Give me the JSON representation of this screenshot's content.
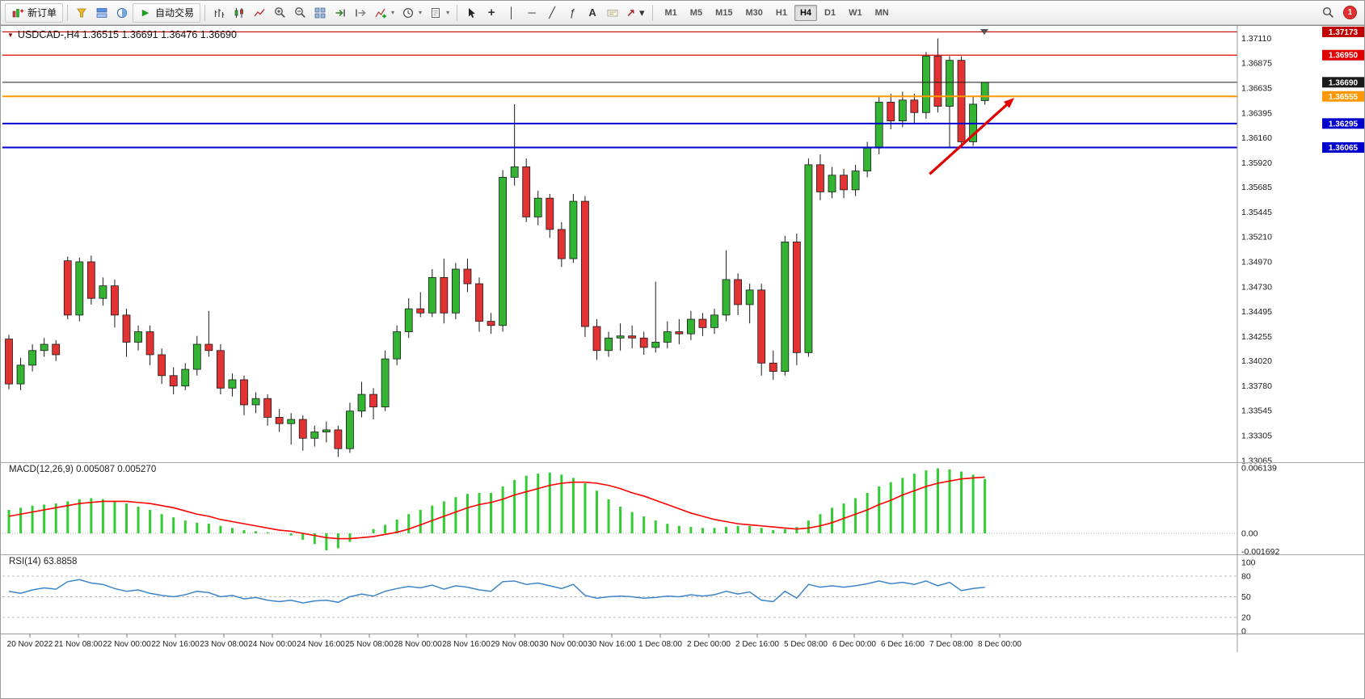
{
  "toolbar": {
    "new_order_label": "新订单",
    "autotrading_label": "自动交易",
    "timeframes": [
      "M1",
      "M5",
      "M15",
      "M30",
      "H1",
      "H4",
      "D1",
      "W1",
      "MN"
    ],
    "active_timeframe": "H4",
    "notification_count": "1"
  },
  "icons": {
    "dropdown": "▾",
    "autotrading_play": "▶",
    "crosshair": "+",
    "vertical_line": "│",
    "horizontal_line": "─",
    "trendline": "╱",
    "fibonacci": "ƒ",
    "text_tool": "A",
    "arrows_tool": "↗",
    "symbol_marker": "▼"
  },
  "chart_data": [
    {
      "type": "candlestick",
      "symbol": "USDCAD-",
      "timeframe": "H4",
      "title": "USDCAD-,H4 1.36515 1.36691 1.36476 1.36690",
      "ohlc": {
        "open": "1.36515",
        "high": "1.36691",
        "low": "1.36476",
        "close": "1.36690"
      },
      "ylim": [
        1.3305,
        1.37215
      ],
      "y_ticks": [
        "1.37110",
        "1.36875",
        "1.36635",
        "1.36395",
        "1.36160",
        "1.35920",
        "1.35685",
        "1.35445",
        "1.35210",
        "1.34970",
        "1.34730",
        "1.34495",
        "1.34255",
        "1.34020",
        "1.33780",
        "1.33545",
        "1.33305",
        "1.33065"
      ],
      "x_labels": [
        "20 Nov 2022",
        "21 Nov 08:00",
        "22 Nov 00:00",
        "22 Nov 16:00",
        "23 Nov 08:00",
        "24 Nov 00:00",
        "24 Nov 16:00",
        "25 Nov 08:00",
        "28 Nov 00:00",
        "28 Nov 16:00",
        "29 Nov 08:00",
        "30 Nov 00:00",
        "30 Nov 16:00",
        "1 Dec 08:00",
        "2 Dec 00:00",
        "2 Dec 16:00",
        "5 Dec 08:00",
        "6 Dec 00:00",
        "6 Dec 16:00",
        "7 Dec 08:00",
        "8 Dec 00:00"
      ],
      "colors": {
        "bull": "#33b533",
        "bear": "#e23232",
        "wick": "#1a1a1a",
        "background": "#ffffff"
      },
      "candles": [
        [
          1.3423,
          1.3427,
          1.3375,
          1.338
        ],
        [
          1.338,
          1.3405,
          1.3374,
          1.3398
        ],
        [
          1.3398,
          1.3418,
          1.3392,
          1.3412
        ],
        [
          1.3412,
          1.3424,
          1.3406,
          1.3418
        ],
        [
          1.3418,
          1.3422,
          1.3402,
          1.3408
        ],
        [
          1.3498,
          1.3502,
          1.3442,
          1.3446
        ],
        [
          1.3446,
          1.3501,
          1.344,
          1.3497
        ],
        [
          1.3497,
          1.3503,
          1.3456,
          1.3462
        ],
        [
          1.3462,
          1.3482,
          1.3455,
          1.3474
        ],
        [
          1.3474,
          1.348,
          1.3434,
          1.3446
        ],
        [
          1.3446,
          1.3452,
          1.3406,
          1.342
        ],
        [
          1.342,
          1.3436,
          1.3412,
          1.343
        ],
        [
          1.343,
          1.3436,
          1.3398,
          1.3408
        ],
        [
          1.3408,
          1.3414,
          1.338,
          1.3388
        ],
        [
          1.3388,
          1.3396,
          1.337,
          1.3378
        ],
        [
          1.3378,
          1.34,
          1.3374,
          1.3394
        ],
        [
          1.3394,
          1.3426,
          1.3388,
          1.3418
        ],
        [
          1.3418,
          1.345,
          1.3406,
          1.3412
        ],
        [
          1.3412,
          1.3418,
          1.337,
          1.3376
        ],
        [
          1.3376,
          1.339,
          1.3368,
          1.3384
        ],
        [
          1.3384,
          1.3388,
          1.335,
          1.336
        ],
        [
          1.336,
          1.3372,
          1.3352,
          1.3366
        ],
        [
          1.3366,
          1.337,
          1.334,
          1.3348
        ],
        [
          1.3348,
          1.3356,
          1.3334,
          1.3342
        ],
        [
          1.3342,
          1.3352,
          1.3322,
          1.3346
        ],
        [
          1.3346,
          1.335,
          1.3316,
          1.3328
        ],
        [
          1.3328,
          1.334,
          1.332,
          1.3334
        ],
        [
          1.3334,
          1.3344,
          1.3324,
          1.3336
        ],
        [
          1.3336,
          1.334,
          1.331,
          1.3318
        ],
        [
          1.3318,
          1.3362,
          1.3314,
          1.3354
        ],
        [
          1.3354,
          1.3382,
          1.3348,
          1.337
        ],
        [
          1.337,
          1.3376,
          1.3346,
          1.3358
        ],
        [
          1.3358,
          1.3412,
          1.3354,
          1.3404
        ],
        [
          1.3404,
          1.3436,
          1.3398,
          1.343
        ],
        [
          1.343,
          1.3462,
          1.3424,
          1.3452
        ],
        [
          1.3452,
          1.3468,
          1.3444,
          1.3448
        ],
        [
          1.3448,
          1.349,
          1.3444,
          1.3482
        ],
        [
          1.3482,
          1.35,
          1.3438,
          1.3448
        ],
        [
          1.3448,
          1.3496,
          1.3442,
          1.349
        ],
        [
          1.349,
          1.35,
          1.3468,
          1.3476
        ],
        [
          1.3476,
          1.3482,
          1.343,
          1.344
        ],
        [
          1.344,
          1.3448,
          1.3428,
          1.3436
        ],
        [
          1.3436,
          1.3585,
          1.343,
          1.3578
        ],
        [
          1.3578,
          1.3648,
          1.357,
          1.3588
        ],
        [
          1.3588,
          1.3596,
          1.3535,
          1.354
        ],
        [
          1.354,
          1.3565,
          1.3532,
          1.3558
        ],
        [
          1.3558,
          1.3562,
          1.352,
          1.3528
        ],
        [
          1.3528,
          1.3535,
          1.3492,
          1.35
        ],
        [
          1.35,
          1.3562,
          1.3496,
          1.3555
        ],
        [
          1.3555,
          1.356,
          1.3425,
          1.3435
        ],
        [
          1.3435,
          1.3442,
          1.3403,
          1.3412
        ],
        [
          1.3412,
          1.343,
          1.3406,
          1.3424
        ],
        [
          1.3424,
          1.3438,
          1.3412,
          1.3426
        ],
        [
          1.3426,
          1.3436,
          1.3414,
          1.3424
        ],
        [
          1.3424,
          1.343,
          1.3408,
          1.3415
        ],
        [
          1.3415,
          1.3478,
          1.341,
          1.342
        ],
        [
          1.342,
          1.344,
          1.3414,
          1.343
        ],
        [
          1.343,
          1.3442,
          1.3418,
          1.3428
        ],
        [
          1.3428,
          1.345,
          1.3422,
          1.3442
        ],
        [
          1.3442,
          1.3448,
          1.3426,
          1.3434
        ],
        [
          1.3434,
          1.3452,
          1.3428,
          1.3446
        ],
        [
          1.3446,
          1.3508,
          1.344,
          1.348
        ],
        [
          1.348,
          1.3486,
          1.3446,
          1.3456
        ],
        [
          1.3456,
          1.3476,
          1.3438,
          1.347
        ],
        [
          1.347,
          1.3476,
          1.3388,
          1.34
        ],
        [
          1.34,
          1.3412,
          1.3384,
          1.3392
        ],
        [
          1.3392,
          1.3522,
          1.3388,
          1.3516
        ],
        [
          1.3516,
          1.3524,
          1.3398,
          1.341
        ],
        [
          1.341,
          1.3596,
          1.3406,
          1.359
        ],
        [
          1.359,
          1.36,
          1.3556,
          1.3564
        ],
        [
          1.3564,
          1.3588,
          1.3558,
          1.358
        ],
        [
          1.358,
          1.3586,
          1.3558,
          1.3566
        ],
        [
          1.3566,
          1.359,
          1.356,
          1.3584
        ],
        [
          1.3584,
          1.3612,
          1.3578,
          1.3606
        ],
        [
          1.3606,
          1.3656,
          1.36,
          1.365
        ],
        [
          1.365,
          1.3658,
          1.3624,
          1.3632
        ],
        [
          1.3632,
          1.366,
          1.3626,
          1.3652
        ],
        [
          1.3652,
          1.3658,
          1.363,
          1.364
        ],
        [
          1.364,
          1.3698,
          1.3634,
          1.3694
        ],
        [
          1.3694,
          1.3711,
          1.364,
          1.3646
        ],
        [
          1.3646,
          1.3694,
          1.3606,
          1.369
        ],
        [
          1.369,
          1.3694,
          1.3607,
          1.3612
        ],
        [
          1.3612,
          1.3656,
          1.3608,
          1.3648
        ],
        [
          1.36515,
          1.36691,
          1.36476,
          1.3669
        ]
      ],
      "hlines": [
        {
          "price": 1.37173,
          "label": "1.37173",
          "color": "#c00000",
          "width": 1.2
        },
        {
          "price": 1.3695,
          "label": "1.36950",
          "color": "#e00000",
          "width": 1.2
        },
        {
          "price": 1.3669,
          "label": "1.36690",
          "color": "#1a1a1a",
          "width": 1
        },
        {
          "price": 1.36555,
          "label": "1.36555",
          "color": "#ff9800",
          "width": 2
        },
        {
          "price": 1.36295,
          "label": "1.36295",
          "color": "#0000cc",
          "width": 2
        },
        {
          "price": 1.36065,
          "label": "1.36065",
          "color": "#0000cc",
          "width": 2
        }
      ],
      "arrow": {
        "from_candle": 78.3,
        "from_price": 1.3581,
        "to_candle": 85.3,
        "to_price": 1.3652,
        "color": "#e00000"
      }
    },
    {
      "type": "bar",
      "name": "MACD(12,26,9)",
      "label": "MACD(12,26,9) 0.005087 0.005270",
      "current_values": [
        "0.005087",
        "0.005270"
      ],
      "y_ticks": [
        "0.006139",
        "0.00",
        "-0.001692"
      ],
      "colors": {
        "histogram": "#33cc33",
        "signal": "#ff0000"
      },
      "values": [
        0.0022,
        0.0024,
        0.0026,
        0.0027,
        0.0028,
        0.003,
        0.0032,
        0.0033,
        0.0032,
        0.003,
        0.0028,
        0.0025,
        0.0022,
        0.0018,
        0.0015,
        0.0012,
        0.001,
        0.0009,
        0.0007,
        0.0005,
        0.0003,
        0.0002,
        0.0001,
        0.0,
        -0.0002,
        -0.0006,
        -0.001,
        -0.0016,
        -0.0014,
        -0.0008,
        0.0,
        0.0004,
        0.0008,
        0.0013,
        0.0018,
        0.0022,
        0.0026,
        0.003,
        0.0034,
        0.0037,
        0.0038,
        0.0038,
        0.0044,
        0.005,
        0.0054,
        0.0056,
        0.0057,
        0.0055,
        0.0052,
        0.0047,
        0.004,
        0.0032,
        0.0025,
        0.002,
        0.0016,
        0.0012,
        0.0009,
        0.0007,
        0.0006,
        0.0005,
        0.0005,
        0.0006,
        0.0007,
        0.0007,
        0.0005,
        0.0003,
        0.0004,
        0.0006,
        0.0012,
        0.0018,
        0.0024,
        0.0028,
        0.0033,
        0.0038,
        0.0044,
        0.0048,
        0.0052,
        0.0056,
        0.0059,
        0.0061,
        0.006,
        0.0058,
        0.0055,
        0.005087
      ],
      "signal": [
        0.0016,
        0.0018,
        0.002,
        0.0022,
        0.0024,
        0.0026,
        0.0028,
        0.0029,
        0.003,
        0.003,
        0.003,
        0.0029,
        0.0028,
        0.0026,
        0.0024,
        0.0021,
        0.0018,
        0.0016,
        0.0013,
        0.0011,
        0.0009,
        0.0007,
        0.0005,
        0.0003,
        0.0002,
        0.0,
        -0.0002,
        -0.0004,
        -0.0005,
        -0.0005,
        -0.0004,
        -0.0003,
        -0.0001,
        0.0001,
        0.0004,
        0.0008,
        0.0012,
        0.0016,
        0.002,
        0.0024,
        0.0027,
        0.0029,
        0.0032,
        0.0036,
        0.0039,
        0.0042,
        0.0045,
        0.0047,
        0.0048,
        0.0048,
        0.0047,
        0.0045,
        0.0042,
        0.0038,
        0.0035,
        0.0031,
        0.0027,
        0.0023,
        0.0019,
        0.0016,
        0.0013,
        0.0011,
        0.0009,
        0.0008,
        0.0007,
        0.0006,
        0.0005,
        0.0004,
        0.0005,
        0.0007,
        0.001,
        0.0014,
        0.0018,
        0.0022,
        0.0027,
        0.0031,
        0.0036,
        0.004,
        0.0044,
        0.0047,
        0.0049,
        0.0051,
        0.0052,
        0.00527
      ]
    },
    {
      "type": "line",
      "name": "RSI(14)",
      "label": "RSI(14) 63.8858",
      "current_value": "63.8858",
      "levels": [
        80,
        50,
        20
      ],
      "y_ticks": [
        "100",
        "80",
        "50",
        "20",
        "0"
      ],
      "ylim": [
        0,
        100
      ],
      "colors": {
        "line": "#3d85c8"
      },
      "values": [
        58,
        55,
        60,
        63,
        61,
        72,
        75,
        70,
        68,
        62,
        58,
        60,
        55,
        52,
        50,
        53,
        58,
        56,
        50,
        52,
        47,
        49,
        45,
        43,
        45,
        41,
        44,
        45,
        42,
        50,
        54,
        51,
        58,
        62,
        65,
        63,
        67,
        61,
        66,
        64,
        60,
        58,
        72,
        73,
        68,
        70,
        66,
        62,
        68,
        52,
        48,
        50,
        51,
        50,
        48,
        49,
        51,
        50,
        53,
        51,
        53,
        58,
        54,
        57,
        45,
        43,
        58,
        48,
        68,
        64,
        66,
        64,
        66,
        69,
        73,
        69,
        71,
        68,
        73,
        66,
        71,
        59,
        62,
        63.8858
      ]
    }
  ]
}
